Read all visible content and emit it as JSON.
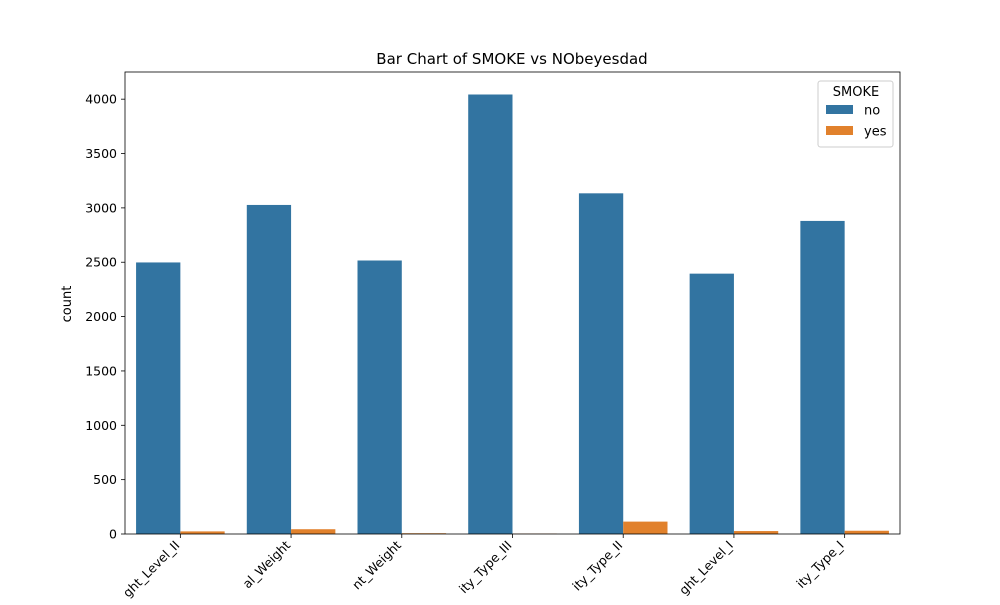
{
  "chart_data": {
    "type": "bar",
    "title": "Bar Chart of SMOKE vs NObeyesdad",
    "xlabel": "",
    "ylabel": "count",
    "ylim": [
      0,
      4250
    ],
    "yticks": [
      0,
      500,
      1000,
      1500,
      2000,
      2500,
      3000,
      3500,
      4000
    ],
    "categories": [
      "ght_Level_II",
      "al_Weight",
      "nt_Weight",
      "ity_Type_III",
      "ity_Type_II",
      "ght_Level_I",
      "ity_Type_I"
    ],
    "legend": {
      "title": "SMOKE",
      "placement": "top-right"
    },
    "grid": false,
    "series": [
      {
        "name": "no",
        "color": "#3274a1",
        "values": [
          2498,
          3027,
          2516,
          4043,
          3134,
          2395,
          2880
        ]
      },
      {
        "name": "yes",
        "color": "#e1812c",
        "values": [
          24,
          44,
          7,
          3,
          114,
          27,
          30
        ]
      }
    ]
  }
}
